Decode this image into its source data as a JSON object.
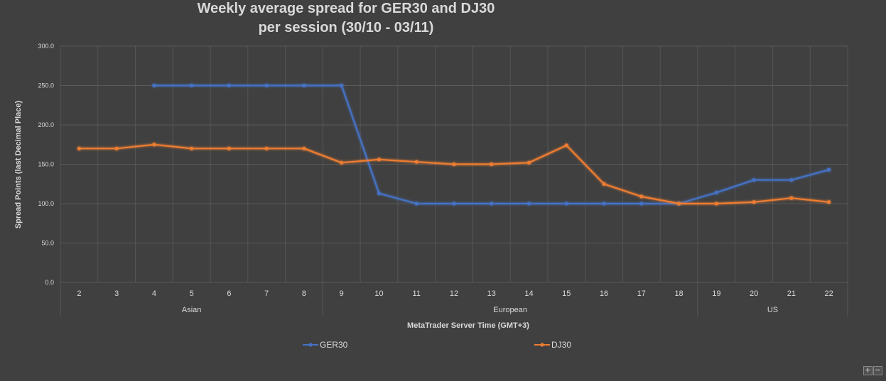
{
  "chart_data": {
    "type": "line",
    "title_line1": "Weekly average spread for GER30 and DJ30",
    "title_line2": "per session (30/10 - 03/11)",
    "xlabel": "MetaTrader Server Time (GMT+3)",
    "ylabel": "Spread Points  (last Decimal Place)",
    "ylim": [
      0,
      300
    ],
    "yticks": [
      "0.0",
      "50.0",
      "100.0",
      "150.0",
      "200.0",
      "250.0",
      "300.0"
    ],
    "categories": [
      "2",
      "3",
      "4",
      "5",
      "6",
      "7",
      "8",
      "9",
      "10",
      "11",
      "12",
      "13",
      "14",
      "15",
      "16",
      "17",
      "18",
      "19",
      "20",
      "21",
      "22"
    ],
    "groups": [
      {
        "label": "Asian",
        "from": 0,
        "to": 6
      },
      {
        "label": "European",
        "from": 7,
        "to": 16
      },
      {
        "label": "US",
        "from": 17,
        "to": 20
      }
    ],
    "grid": true,
    "legend_position": "bottom",
    "series": [
      {
        "name": "GER30",
        "color": "#4472c4",
        "values": [
          null,
          null,
          250,
          250,
          250,
          250,
          250,
          250,
          113,
          100,
          100,
          100,
          100,
          100,
          100,
          100,
          100,
          114,
          130,
          130,
          143
        ]
      },
      {
        "name": "DJ30",
        "color": "#ed7d31",
        "values": [
          170,
          170,
          175,
          170,
          170,
          170,
          170,
          152,
          156,
          153,
          150,
          150,
          152,
          174,
          125,
          109,
          100,
          100,
          102,
          107,
          102
        ]
      }
    ]
  },
  "zoom": {
    "plus": "+",
    "minus": "−"
  }
}
